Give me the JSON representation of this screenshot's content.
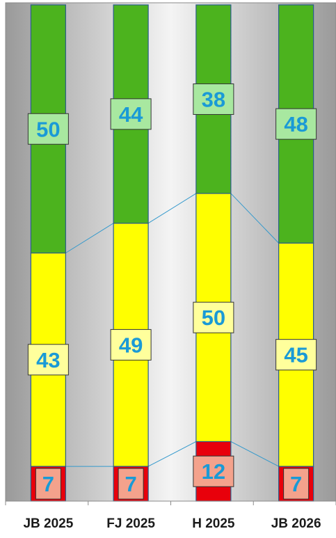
{
  "chart_data": {
    "type": "bar",
    "stacked": true,
    "normalized_to_percent": true,
    "categories": [
      "JB 2025",
      "FJ 2025",
      "H 2025",
      "JB 2026"
    ],
    "series": [
      {
        "color": "#e8000b",
        "label_bg": "#f4a28c",
        "values": [
          7,
          7,
          12,
          7
        ]
      },
      {
        "color": "#ffff00",
        "label_bg": "#ffff9c",
        "values": [
          43,
          49,
          50,
          45
        ]
      },
      {
        "color": "#4cb31e",
        "label_bg": "#a8e8a0",
        "values": [
          50,
          44,
          38,
          48
        ]
      }
    ],
    "ylim": [
      0,
      100
    ],
    "grid": false,
    "legend": "none",
    "series_connectors": true,
    "background": "silver-gradient",
    "label_color": "#1a9ad6"
  }
}
